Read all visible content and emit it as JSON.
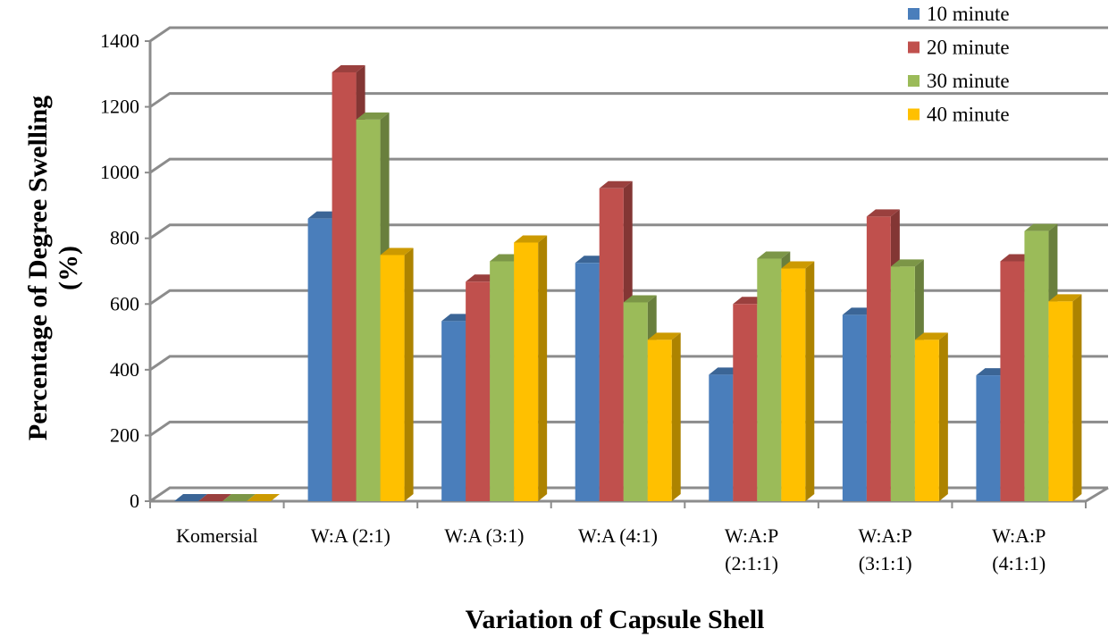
{
  "chart_data": {
    "type": "bar",
    "title": "",
    "xlabel": "Variation of Capsule Shell",
    "ylabel_lines": [
      "Percentage of  Degree Swelling",
      "(%)"
    ],
    "ylim": [
      0,
      1400
    ],
    "yticks": [
      0,
      200,
      400,
      600,
      800,
      1000,
      1200,
      1400
    ],
    "grid": true,
    "legend_position": "top-right",
    "style": "3d-clustered-column",
    "categories": [
      [
        "Komersial"
      ],
      [
        "W:A (2:1)"
      ],
      [
        "W:A (3:1)"
      ],
      [
        "W:A (4:1)"
      ],
      [
        "W:A:P",
        "(2:1:1)"
      ],
      [
        "W:A:P",
        "(3:1:1)"
      ],
      [
        "W:A:P",
        "(4:1:1)"
      ]
    ],
    "series": [
      {
        "name": "10 minute",
        "color": "#4a7ebb",
        "values": [
          0,
          860,
          548,
          725,
          385,
          567,
          383
        ]
      },
      {
        "name": "20 minute",
        "color": "#c0504d",
        "values": [
          0,
          1305,
          668,
          952,
          600,
          866,
          730
        ]
      },
      {
        "name": "30 minute",
        "color": "#9bbb59",
        "values": [
          0,
          1161,
          730,
          605,
          738,
          714,
          822
        ]
      },
      {
        "name": "40 minute",
        "color": "#ffc000",
        "values": [
          0,
          749,
          787,
          491,
          708,
          491,
          608
        ]
      }
    ]
  }
}
